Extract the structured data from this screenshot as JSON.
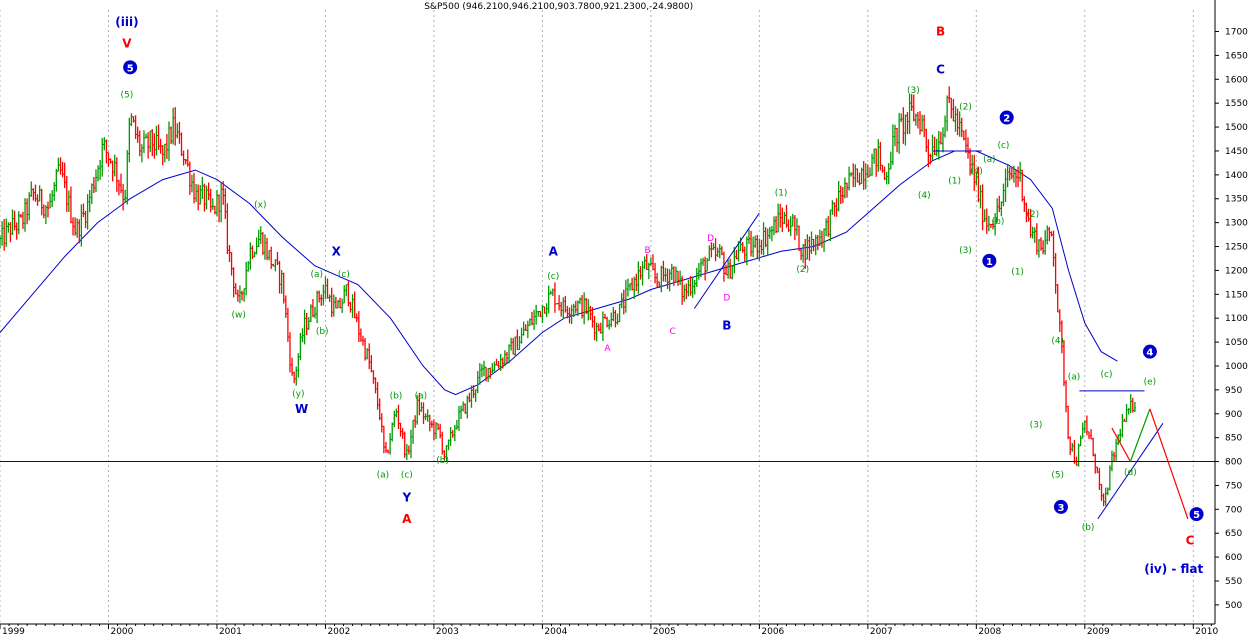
{
  "chart_data": {
    "type": "candlestick",
    "title": "S&P500 (946.2100,946.2100,903.7800,921.2300,-24.9800)",
    "x_ticks": [
      "1999",
      "2000",
      "2001",
      "2002",
      "2003",
      "2004",
      "2005",
      "2006",
      "2007",
      "2008",
      "2009",
      "2010"
    ],
    "x_range": [
      1999.0,
      2010.2
    ],
    "y_ticks": [
      500,
      550,
      600,
      650,
      700,
      750,
      800,
      850,
      900,
      950,
      1000,
      1050,
      1100,
      1150,
      1200,
      1250,
      1300,
      1350,
      1400,
      1450,
      1500,
      1550,
      1600,
      1650,
      1700
    ],
    "y_range": [
      460,
      1745
    ],
    "colors": {
      "up": "#009900",
      "down": "#ff0000",
      "line": "#0000cc",
      "label_red": "#ff0000",
      "label_blue": "#0000cc",
      "label_green": "#009900",
      "label_magenta": "#ff00ff"
    },
    "price_path": [
      [
        1999.0,
        1260
      ],
      [
        1999.1,
        1290
      ],
      [
        1999.2,
        1300
      ],
      [
        1999.3,
        1360
      ],
      [
        1999.45,
        1330
      ],
      [
        1999.55,
        1410
      ],
      [
        1999.7,
        1280
      ],
      [
        1999.8,
        1330
      ],
      [
        1999.95,
        1460
      ],
      [
        2000.05,
        1420
      ],
      [
        2000.15,
        1350
      ],
      [
        2000.2,
        1520
      ],
      [
        2000.3,
        1450
      ],
      [
        2000.4,
        1470
      ],
      [
        2000.5,
        1440
      ],
      [
        2000.6,
        1500
      ],
      [
        2000.7,
        1440
      ],
      [
        2000.8,
        1360
      ],
      [
        2000.9,
        1350
      ],
      [
        2000.95,
        1320
      ],
      [
        2001.05,
        1360
      ],
      [
        2001.1,
        1250
      ],
      [
        2001.2,
        1120
      ],
      [
        2001.3,
        1240
      ],
      [
        2001.4,
        1270
      ],
      [
        2001.5,
        1220
      ],
      [
        2001.6,
        1180
      ],
      [
        2001.7,
        960
      ],
      [
        2001.8,
        1080
      ],
      [
        2001.95,
        1150
      ],
      [
        2002.0,
        1160
      ],
      [
        2002.1,
        1110
      ],
      [
        2002.2,
        1160
      ],
      [
        2002.3,
        1080
      ],
      [
        2002.4,
        1010
      ],
      [
        2002.5,
        900
      ],
      [
        2002.55,
        800
      ],
      [
        2002.65,
        910
      ],
      [
        2002.75,
        810
      ],
      [
        2002.85,
        920
      ],
      [
        2002.95,
        880
      ],
      [
        2003.05,
        860
      ],
      [
        2003.1,
        810
      ],
      [
        2003.2,
        880
      ],
      [
        2003.3,
        920
      ],
      [
        2003.45,
        990
      ],
      [
        2003.55,
        1000
      ],
      [
        2003.7,
        1030
      ],
      [
        2003.8,
        1060
      ],
      [
        2003.95,
        1110
      ],
      [
        2004.05,
        1140
      ],
      [
        2004.1,
        1150
      ],
      [
        2004.2,
        1120
      ],
      [
        2004.3,
        1130
      ],
      [
        2004.4,
        1120
      ],
      [
        2004.5,
        1080
      ],
      [
        2004.6,
        1100
      ],
      [
        2004.7,
        1110
      ],
      [
        2004.85,
        1180
      ],
      [
        2004.95,
        1210
      ],
      [
        2005.05,
        1180
      ],
      [
        2005.2,
        1200
      ],
      [
        2005.3,
        1150
      ],
      [
        2005.45,
        1200
      ],
      [
        2005.55,
        1230
      ],
      [
        2005.65,
        1230
      ],
      [
        2005.7,
        1190
      ],
      [
        2005.8,
        1240
      ],
      [
        2005.95,
        1250
      ],
      [
        2006.1,
        1280
      ],
      [
        2006.2,
        1310
      ],
      [
        2006.3,
        1300
      ],
      [
        2006.4,
        1240
      ],
      [
        2006.45,
        1250
      ],
      [
        2006.6,
        1280
      ],
      [
        2006.75,
        1360
      ],
      [
        2006.9,
        1400
      ],
      [
        2007.0,
        1420
      ],
      [
        2007.1,
        1440
      ],
      [
        2007.15,
        1390
      ],
      [
        2007.25,
        1480
      ],
      [
        2007.4,
        1530
      ],
      [
        2007.5,
        1510
      ],
      [
        2007.55,
        1450
      ],
      [
        2007.65,
        1470
      ],
      [
        2007.75,
        1550
      ],
      [
        2007.85,
        1490
      ],
      [
        2007.92,
        1440
      ],
      [
        2008.0,
        1380
      ],
      [
        2008.05,
        1330
      ],
      [
        2008.1,
        1300
      ],
      [
        2008.2,
        1320
      ],
      [
        2008.3,
        1400
      ],
      [
        2008.4,
        1400
      ],
      [
        2008.5,
        1280
      ],
      [
        2008.6,
        1250
      ],
      [
        2008.7,
        1280
      ],
      [
        2008.75,
        1120
      ],
      [
        2008.8,
        1000
      ],
      [
        2008.85,
        850
      ],
      [
        2008.92,
        800
      ],
      [
        2009.0,
        880
      ],
      [
        2009.08,
        820
      ],
      [
        2009.17,
        700
      ],
      [
        2009.25,
        800
      ],
      [
        2009.33,
        870
      ],
      [
        2009.42,
        910
      ],
      [
        2009.47,
        930
      ]
    ],
    "moving_average": [
      [
        1999.0,
        1070
      ],
      [
        1999.3,
        1150
      ],
      [
        1999.6,
        1230
      ],
      [
        1999.9,
        1300
      ],
      [
        2000.2,
        1350
      ],
      [
        2000.5,
        1390
      ],
      [
        2000.8,
        1410
      ],
      [
        2001.0,
        1390
      ],
      [
        2001.3,
        1340
      ],
      [
        2001.6,
        1270
      ],
      [
        2001.9,
        1210
      ],
      [
        2002.1,
        1190
      ],
      [
        2002.3,
        1170
      ],
      [
        2002.6,
        1100
      ],
      [
        2002.9,
        1000
      ],
      [
        2003.1,
        950
      ],
      [
        2003.2,
        940
      ],
      [
        2003.4,
        960
      ],
      [
        2003.7,
        1010
      ],
      [
        2004.0,
        1070
      ],
      [
        2004.2,
        1100
      ],
      [
        2004.5,
        1120
      ],
      [
        2004.8,
        1140
      ],
      [
        2005.0,
        1160
      ],
      [
        2005.3,
        1180
      ],
      [
        2005.6,
        1200
      ],
      [
        2005.9,
        1220
      ],
      [
        2006.2,
        1240
      ],
      [
        2006.5,
        1250
      ],
      [
        2006.8,
        1280
      ],
      [
        2007.0,
        1320
      ],
      [
        2007.3,
        1380
      ],
      [
        2007.6,
        1430
      ],
      [
        2007.8,
        1450
      ],
      [
        2008.0,
        1450
      ],
      [
        2008.3,
        1420
      ],
      [
        2008.5,
        1390
      ],
      [
        2008.7,
        1330
      ],
      [
        2008.85,
        1200
      ],
      [
        2009.0,
        1090
      ],
      [
        2009.15,
        1030
      ],
      [
        2009.3,
        1010
      ]
    ],
    "horizontal_lines": [
      800
    ],
    "trendlines": [
      [
        [
          2005.4,
          1120
        ],
        [
          2006.0,
          1320
        ]
      ],
      [
        [
          2007.6,
          1450
        ],
        [
          2008.05,
          1450
        ]
      ],
      [
        [
          2008.95,
          948
        ],
        [
          2009.55,
          948
        ]
      ],
      [
        [
          2009.12,
          680
        ],
        [
          2009.72,
          880
        ]
      ]
    ],
    "projection_lines": [
      [
        [
          2009.25,
          870
        ],
        [
          2009.42,
          800
        ],
        [
          2009.6,
          910
        ],
        [
          2009.95,
          680
        ]
      ]
    ],
    "wave_labels": [
      {
        "text": "(iii)",
        "x": 2000.17,
        "y": 1720,
        "color": "label_blue",
        "size": "big"
      },
      {
        "text": "V",
        "x": 2000.17,
        "y": 1675,
        "color": "label_red",
        "size": "big"
      },
      {
        "text": "5",
        "x": 2000.2,
        "y": 1625,
        "color": "label_blue",
        "size": "circle"
      },
      {
        "text": "(5)",
        "x": 2000.17,
        "y": 1570,
        "color": "label_green",
        "size": "small"
      },
      {
        "text": "(x)",
        "x": 2001.4,
        "y": 1340,
        "color": "label_green",
        "size": "small"
      },
      {
        "text": "(w)",
        "x": 2001.2,
        "y": 1110,
        "color": "label_green",
        "size": "small"
      },
      {
        "text": "(y)",
        "x": 2001.75,
        "y": 945,
        "color": "label_green",
        "size": "small"
      },
      {
        "text": "W",
        "x": 2001.78,
        "y": 910,
        "color": "label_blue",
        "size": "big"
      },
      {
        "text": "X",
        "x": 2002.1,
        "y": 1240,
        "color": "label_blue",
        "size": "big"
      },
      {
        "text": "(a)",
        "x": 2001.92,
        "y": 1195,
        "color": "label_green",
        "size": "small"
      },
      {
        "text": "(c)",
        "x": 2002.17,
        "y": 1195,
        "color": "label_green",
        "size": "small"
      },
      {
        "text": "(b)",
        "x": 2001.97,
        "y": 1075,
        "color": "label_green",
        "size": "small"
      },
      {
        "text": "(b)",
        "x": 2002.65,
        "y": 940,
        "color": "label_green",
        "size": "small"
      },
      {
        "text": "(a)",
        "x": 2002.88,
        "y": 940,
        "color": "label_green",
        "size": "small"
      },
      {
        "text": "(a)",
        "x": 2002.53,
        "y": 775,
        "color": "label_green",
        "size": "small"
      },
      {
        "text": "(c)",
        "x": 2002.75,
        "y": 775,
        "color": "label_green",
        "size": "small"
      },
      {
        "text": "(b)",
        "x": 2003.08,
        "y": 805,
        "color": "label_green",
        "size": "small"
      },
      {
        "text": "Y",
        "x": 2002.75,
        "y": 725,
        "color": "label_blue",
        "size": "big"
      },
      {
        "text": "A",
        "x": 2002.75,
        "y": 680,
        "color": "label_red",
        "size": "big"
      },
      {
        "text": "A",
        "x": 2004.1,
        "y": 1240,
        "color": "label_blue",
        "size": "big"
      },
      {
        "text": "(c)",
        "x": 2004.1,
        "y": 1190,
        "color": "label_green",
        "size": "small"
      },
      {
        "text": "B",
        "x": 2004.97,
        "y": 1245,
        "color": "label_magenta",
        "size": "small"
      },
      {
        "text": "D",
        "x": 2005.55,
        "y": 1270,
        "color": "label_magenta",
        "size": "small"
      },
      {
        "text": "A",
        "x": 2004.6,
        "y": 1040,
        "color": "label_magenta",
        "size": "small"
      },
      {
        "text": "C",
        "x": 2005.2,
        "y": 1075,
        "color": "label_magenta",
        "size": "small"
      },
      {
        "text": "D",
        "x": 2005.7,
        "y": 1145,
        "color": "label_magenta",
        "size": "small"
      },
      {
        "text": "B",
        "x": 2005.7,
        "y": 1085,
        "color": "label_blue",
        "size": "big"
      },
      {
        "text": "(1)",
        "x": 2006.2,
        "y": 1365,
        "color": "label_green",
        "size": "small"
      },
      {
        "text": "(2)",
        "x": 2006.4,
        "y": 1205,
        "color": "label_green",
        "size": "small"
      },
      {
        "text": "(3)",
        "x": 2007.42,
        "y": 1580,
        "color": "label_green",
        "size": "small"
      },
      {
        "text": "(4)",
        "x": 2007.52,
        "y": 1360,
        "color": "label_green",
        "size": "small"
      },
      {
        "text": "B",
        "x": 2007.67,
        "y": 1700,
        "color": "label_red",
        "size": "big"
      },
      {
        "text": "C",
        "x": 2007.67,
        "y": 1620,
        "color": "label_blue",
        "size": "big"
      },
      {
        "text": "(2)",
        "x": 2007.9,
        "y": 1545,
        "color": "label_green",
        "size": "small"
      },
      {
        "text": "(1)",
        "x": 2007.8,
        "y": 1390,
        "color": "label_green",
        "size": "small"
      },
      {
        "text": "(4)",
        "x": 2008.0,
        "y": 1410,
        "color": "label_green",
        "size": "small"
      },
      {
        "text": "(a)",
        "x": 2008.12,
        "y": 1435,
        "color": "label_green",
        "size": "small"
      },
      {
        "text": "(c)",
        "x": 2008.25,
        "y": 1465,
        "color": "label_green",
        "size": "small"
      },
      {
        "text": "2",
        "x": 2008.28,
        "y": 1520,
        "color": "label_blue",
        "size": "circle"
      },
      {
        "text": "(b)",
        "x": 2008.2,
        "y": 1305,
        "color": "label_green",
        "size": "small"
      },
      {
        "text": "(3)",
        "x": 2007.9,
        "y": 1245,
        "color": "label_green",
        "size": "small"
      },
      {
        "text": "1",
        "x": 2008.12,
        "y": 1220,
        "color": "label_blue",
        "size": "circle"
      },
      {
        "text": "(2)",
        "x": 2008.52,
        "y": 1320,
        "color": "label_green",
        "size": "small"
      },
      {
        "text": "(1)",
        "x": 2008.38,
        "y": 1200,
        "color": "label_green",
        "size": "small"
      },
      {
        "text": "(4)",
        "x": 2008.75,
        "y": 1055,
        "color": "label_green",
        "size": "small"
      },
      {
        "text": "(3)",
        "x": 2008.55,
        "y": 880,
        "color": "label_green",
        "size": "small"
      },
      {
        "text": "(5)",
        "x": 2008.75,
        "y": 775,
        "color": "label_green",
        "size": "small"
      },
      {
        "text": "3",
        "x": 2008.78,
        "y": 705,
        "color": "label_blue",
        "size": "circle"
      },
      {
        "text": "(a)",
        "x": 2008.9,
        "y": 980,
        "color": "label_green",
        "size": "small"
      },
      {
        "text": "(c)",
        "x": 2009.2,
        "y": 985,
        "color": "label_green",
        "size": "small"
      },
      {
        "text": "4",
        "x": 2009.6,
        "y": 1030,
        "color": "label_blue",
        "size": "circle"
      },
      {
        "text": "(e)",
        "x": 2009.6,
        "y": 970,
        "color": "label_green",
        "size": "small"
      },
      {
        "text": "(d)",
        "x": 2009.42,
        "y": 780,
        "color": "label_green",
        "size": "small"
      },
      {
        "text": "(b)",
        "x": 2009.03,
        "y": 665,
        "color": "label_green",
        "size": "small"
      },
      {
        "text": "5",
        "x": 2010.03,
        "y": 690,
        "color": "label_blue",
        "size": "circle"
      },
      {
        "text": "C",
        "x": 2009.97,
        "y": 635,
        "color": "label_red",
        "size": "big"
      },
      {
        "text": "(iv) - flat",
        "x": 2009.82,
        "y": 575,
        "color": "label_blue",
        "size": "big"
      }
    ]
  }
}
